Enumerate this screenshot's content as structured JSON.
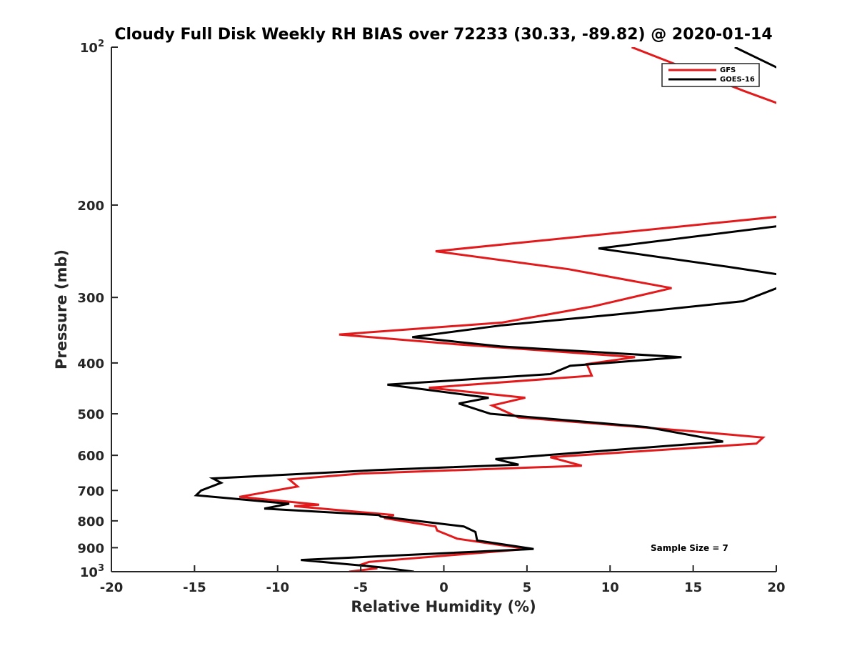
{
  "chart_data": {
    "type": "line",
    "title": "Cloudy Full Disk Weekly RH BIAS over 72233 (30.33, -89.82) @ 2020-01-14",
    "xlabel": "Relative Humidity (%)",
    "ylabel": "Pressure (mb)",
    "xlim": [
      -20,
      20
    ],
    "ylim": [
      100,
      1000
    ],
    "yscale": "log",
    "y_reversed": true,
    "grid": false,
    "legend_position": "top-right",
    "annotation": "Sample Size = 7",
    "x_ticks": [
      -20,
      -15,
      -10,
      -5,
      0,
      5,
      10,
      15,
      20
    ],
    "x_tick_labels": [
      "-20",
      "-15",
      "-10",
      "-5",
      "0",
      "5",
      "10",
      "15",
      "20"
    ],
    "y_ticks": [
      {
        "value": 100,
        "base": "10",
        "exp": "2"
      },
      {
        "value": 200,
        "base": "200",
        "exp": ""
      },
      {
        "value": 300,
        "base": "300",
        "exp": ""
      },
      {
        "value": 400,
        "base": "400",
        "exp": ""
      },
      {
        "value": 500,
        "base": "500",
        "exp": ""
      },
      {
        "value": 600,
        "base": "600",
        "exp": ""
      },
      {
        "value": 700,
        "base": "700",
        "exp": ""
      },
      {
        "value": 800,
        "base": "800",
        "exp": ""
      },
      {
        "value": 900,
        "base": "900",
        "exp": ""
      },
      {
        "value": 1000,
        "base": "10",
        "exp": "3"
      }
    ],
    "series": [
      {
        "name": "GFS",
        "color": "#e31a1c",
        "points": [
          [
            11.3,
            100
          ],
          [
            18,
            121
          ],
          [
            20.1,
            128
          ],
          [
            20.4,
            210
          ],
          [
            11,
            225
          ],
          [
            -0.5,
            245
          ],
          [
            7.5,
            265
          ],
          [
            13.7,
            288
          ],
          [
            9,
            312
          ],
          [
            3.5,
            335
          ],
          [
            -6.3,
            353
          ],
          [
            0.5,
            368
          ],
          [
            11.5,
            390
          ],
          [
            8.6,
            402
          ],
          [
            8.9,
            423
          ],
          [
            -0.9,
            446
          ],
          [
            4.9,
            466
          ],
          [
            2.9,
            482
          ],
          [
            4.5,
            508
          ],
          [
            15,
            540
          ],
          [
            19.2,
            555
          ],
          [
            18.8,
            570
          ],
          [
            6.4,
            605
          ],
          [
            8.3,
            628
          ],
          [
            -5,
            650
          ],
          [
            -9.3,
            667
          ],
          [
            -8.8,
            688
          ],
          [
            -12.3,
            720
          ],
          [
            -7.5,
            745
          ],
          [
            -9,
            750
          ],
          [
            -3,
            780
          ],
          [
            -3.6,
            790
          ],
          [
            -0.5,
            820
          ],
          [
            -0.4,
            835
          ],
          [
            0.8,
            865
          ],
          [
            5,
            905
          ],
          [
            -4.5,
            958
          ],
          [
            -5,
            970
          ],
          [
            -4,
            985
          ],
          [
            -5.7,
            1000
          ]
        ]
      },
      {
        "name": "GOES-16",
        "color": "#000000",
        "points": [
          [
            17.5,
            100
          ],
          [
            20.2,
            110
          ],
          [
            20.3,
            219
          ],
          [
            9.3,
            242
          ],
          [
            17,
            262
          ],
          [
            20.4,
            272
          ],
          [
            20.4,
            285
          ],
          [
            18,
            305
          ],
          [
            10.5,
            323
          ],
          [
            3.5,
            339
          ],
          [
            -1.9,
            357
          ],
          [
            3.4,
            372
          ],
          [
            14.3,
            390
          ],
          [
            7.6,
            405
          ],
          [
            6.4,
            420
          ],
          [
            -3.4,
            440
          ],
          [
            2.7,
            466
          ],
          [
            0.9,
            478
          ],
          [
            2.8,
            500
          ],
          [
            12.2,
            530
          ],
          [
            16.3,
            560
          ],
          [
            16.8,
            565
          ],
          [
            3.1,
            610
          ],
          [
            4.5,
            625
          ],
          [
            -4,
            640
          ],
          [
            -13.9,
            664
          ],
          [
            -13.4,
            677
          ],
          [
            -14.6,
            700
          ],
          [
            -14.9,
            715
          ],
          [
            -9.3,
            742
          ],
          [
            -10.8,
            758
          ],
          [
            -3.9,
            780
          ],
          [
            -3.8,
            785
          ],
          [
            1.2,
            820
          ],
          [
            1.9,
            840
          ],
          [
            2,
            872
          ],
          [
            5.4,
            905
          ],
          [
            -8.6,
            950
          ],
          [
            -3.9,
            980
          ],
          [
            -1.8,
            1000
          ]
        ]
      }
    ]
  }
}
